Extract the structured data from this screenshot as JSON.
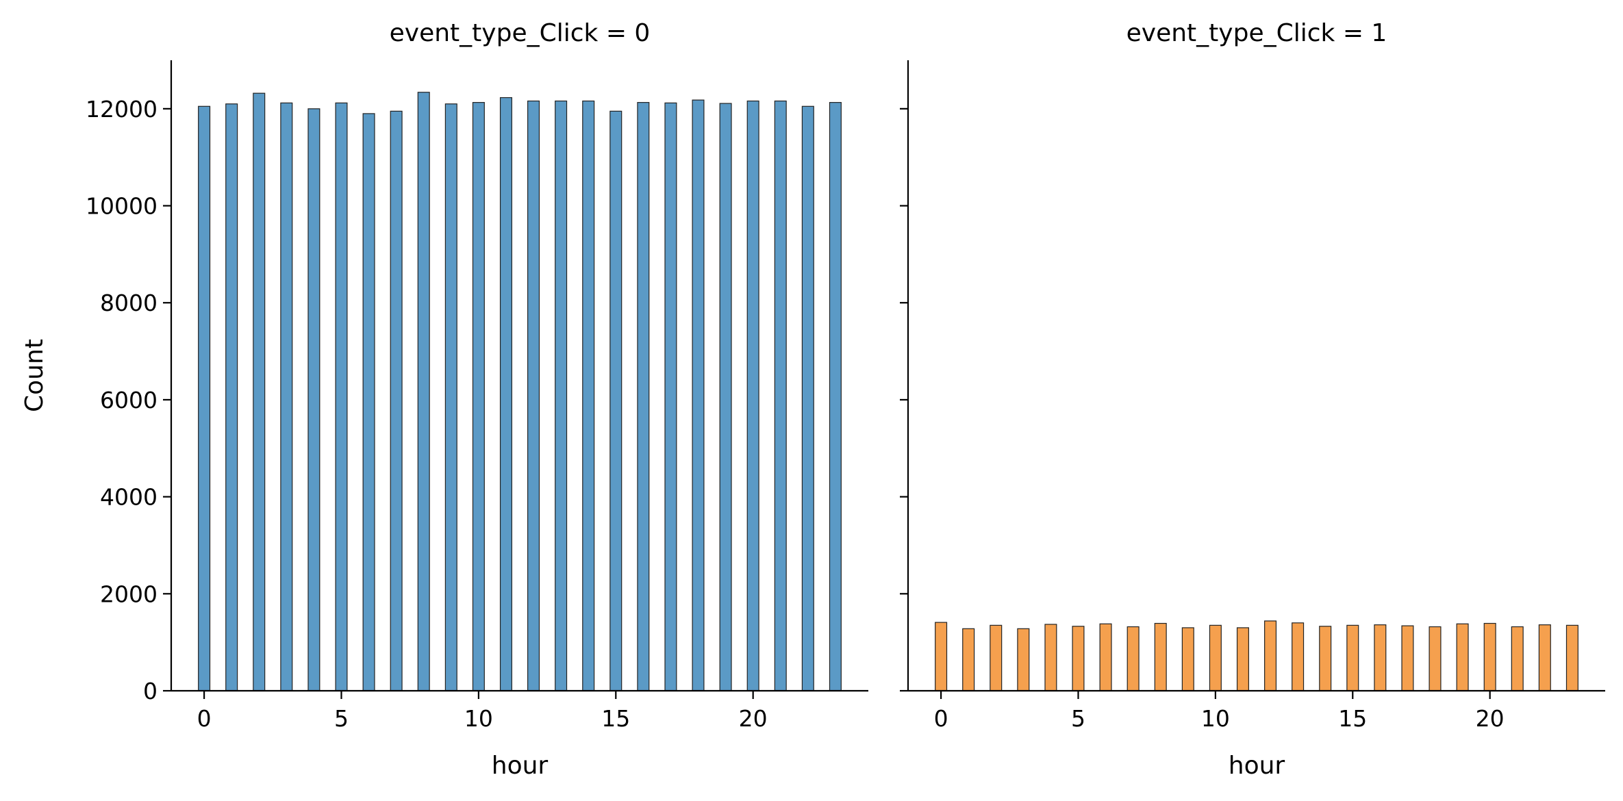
{
  "chart_data": [
    {
      "type": "bar",
      "title": "event_type_Click = 0",
      "xlabel": "hour",
      "ylabel": "Count",
      "xlim": [
        -1.2,
        24.2
      ],
      "ylim": [
        0,
        13000
      ],
      "xticks": [
        0,
        5,
        10,
        15,
        20
      ],
      "yticks": [
        0,
        2000,
        4000,
        6000,
        8000,
        10000,
        12000
      ],
      "grid": false,
      "color": "#5b9ac6",
      "x": [
        0,
        1,
        2,
        3,
        4,
        5,
        6,
        7,
        8,
        9,
        10,
        11,
        12,
        13,
        14,
        15,
        16,
        17,
        18,
        19,
        20,
        21,
        22,
        23
      ],
      "values": [
        12050,
        12100,
        12320,
        12120,
        12000,
        12120,
        11900,
        11950,
        12340,
        12100,
        12130,
        12230,
        12160,
        12160,
        12160,
        11950,
        12130,
        12120,
        12180,
        12110,
        12160,
        12160,
        12050,
        12130
      ]
    },
    {
      "type": "bar",
      "title": "event_type_Click = 1",
      "xlabel": "hour",
      "ylabel": "",
      "xlim": [
        -1.2,
        24.2
      ],
      "ylim": [
        0,
        13000
      ],
      "xticks": [
        0,
        5,
        10,
        15,
        20
      ],
      "yticks": [
        0,
        2000,
        4000,
        6000,
        8000,
        10000,
        12000
      ],
      "grid": false,
      "color": "#f5a04e",
      "x": [
        0,
        1,
        2,
        3,
        4,
        5,
        6,
        7,
        8,
        9,
        10,
        11,
        12,
        13,
        14,
        15,
        16,
        17,
        18,
        19,
        20,
        21,
        22,
        23
      ],
      "values": [
        1410,
        1280,
        1350,
        1280,
        1370,
        1330,
        1380,
        1320,
        1390,
        1300,
        1350,
        1300,
        1440,
        1400,
        1330,
        1350,
        1360,
        1340,
        1320,
        1380,
        1390,
        1320,
        1360,
        1350
      ]
    }
  ]
}
